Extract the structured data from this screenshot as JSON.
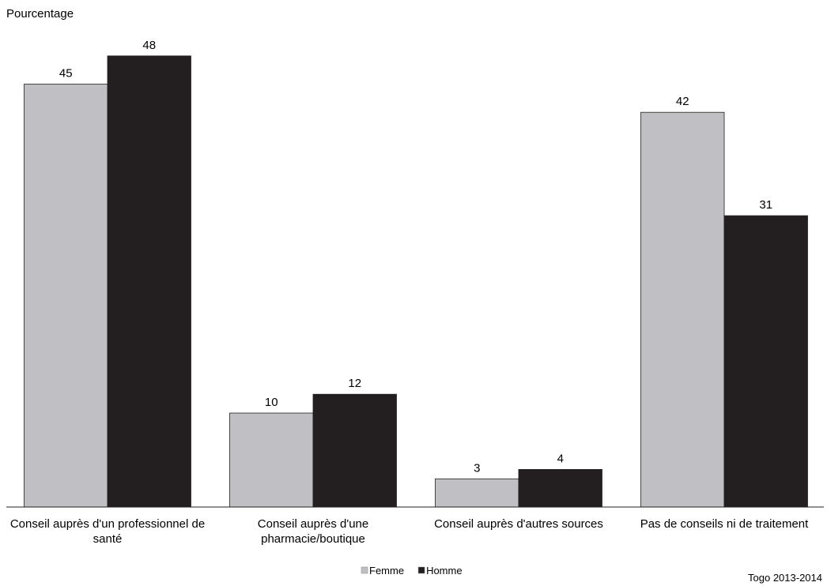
{
  "chart_data": {
    "type": "bar",
    "y_label": "Pourcentage",
    "note": "Togo 2013-2014",
    "categories": [
      "Conseil auprès d'un professionnel de santé",
      "Conseil auprès d'une pharmacie/boutique",
      "Conseil auprès d'autres sources",
      "Pas de conseils ni de traitement"
    ],
    "series": [
      {
        "name": "Femme",
        "color": "#c0c0c4",
        "values": [
          45,
          10,
          3,
          42
        ]
      },
      {
        "name": "Homme",
        "color": "#231f20",
        "values": [
          48,
          12,
          4,
          31
        ]
      }
    ],
    "ylim": [
      0,
      50
    ],
    "legend": "bottom"
  }
}
